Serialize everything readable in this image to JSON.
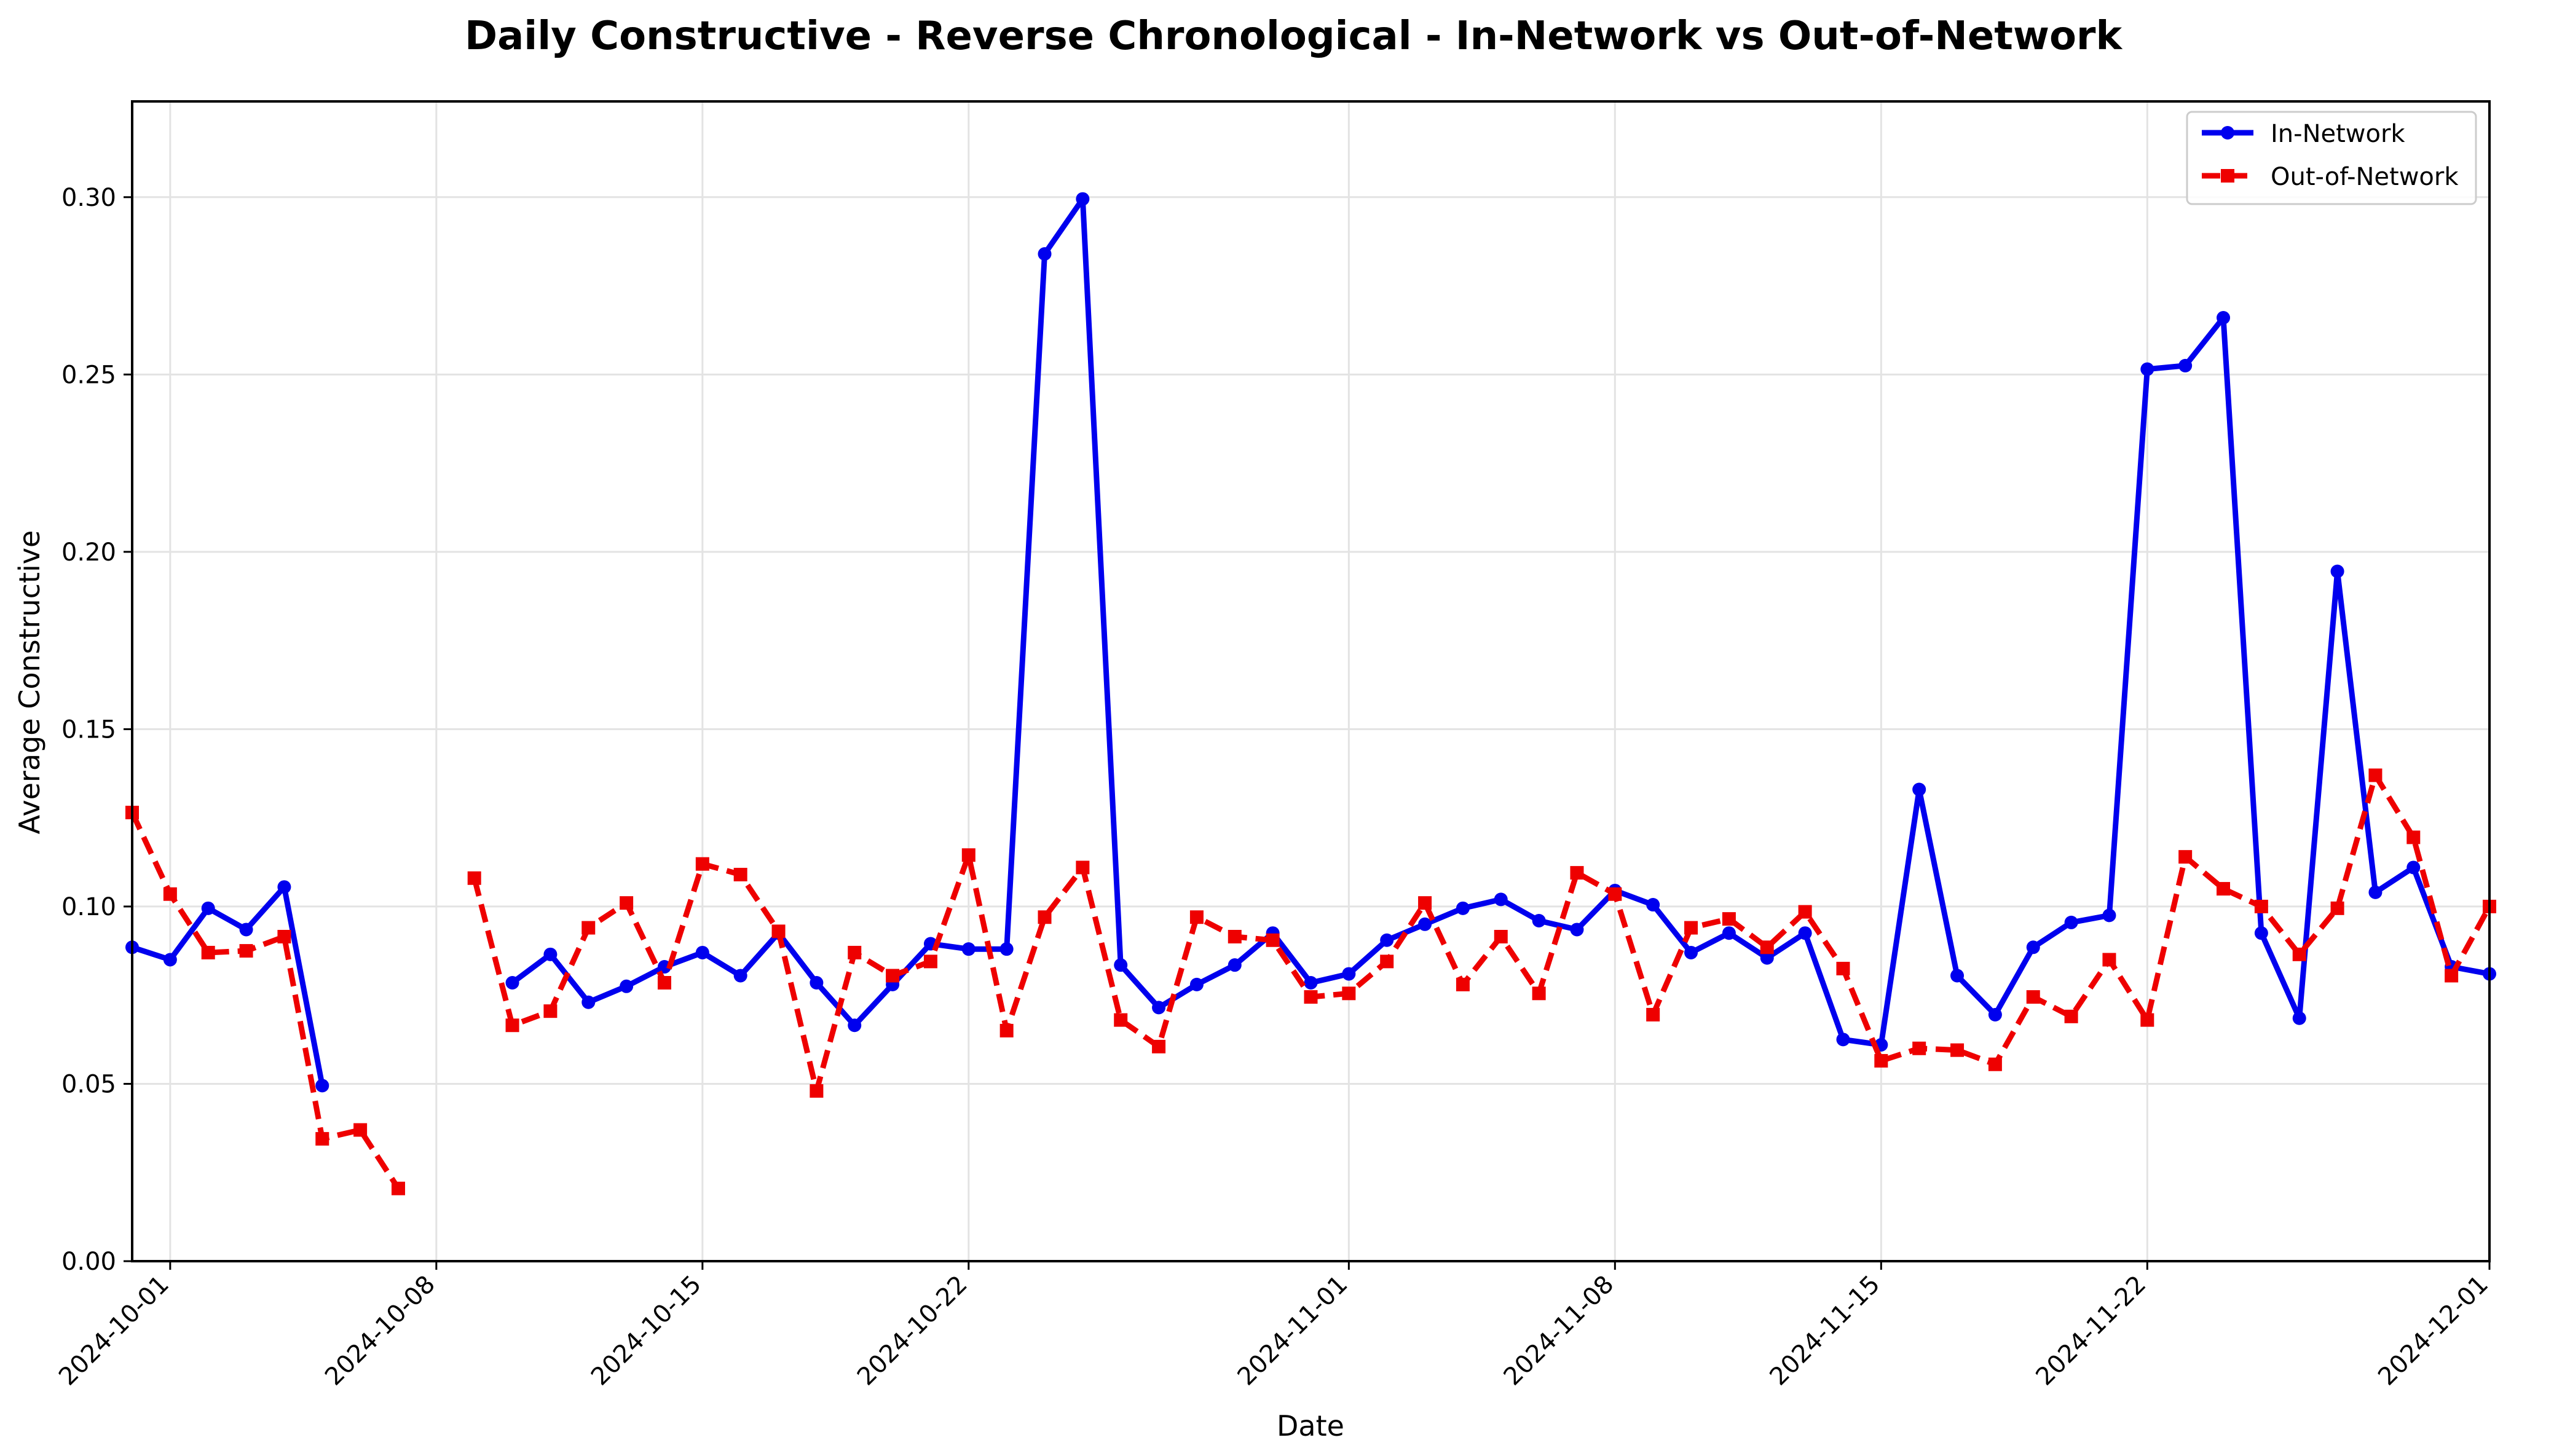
{
  "chart_data": {
    "type": "line",
    "title": "Daily Constructive - Reverse Chronological - In-Network vs Out-of-Network",
    "xlabel": "Date",
    "ylabel": "Average Constructive",
    "xlim": [
      "2024-09-30",
      "2024-12-01"
    ],
    "ylim": [
      0,
      0.327
    ],
    "x_ticks": [
      "2024-10-01",
      "2024-10-08",
      "2024-10-15",
      "2024-10-22",
      "2024-11-01",
      "2024-11-08",
      "2024-11-15",
      "2024-11-22",
      "2024-12-01"
    ],
    "y_ticks": [
      "0.00",
      "0.05",
      "0.10",
      "0.15",
      "0.20",
      "0.25",
      "0.30"
    ],
    "grid": true,
    "legend_position": "top-right",
    "series": [
      {
        "name": "In-Network",
        "color": "#0000ee",
        "style": "solid",
        "marker": "circle",
        "points": [
          [
            "2024-09-30",
            0.0885
          ],
          [
            "2024-10-01",
            0.085
          ],
          [
            "2024-10-02",
            0.0995
          ],
          [
            "2024-10-03",
            0.0935
          ],
          [
            "2024-10-04",
            0.1055
          ],
          [
            "2024-10-05",
            0.0495
          ],
          [
            "2024-10-10",
            0.0785
          ],
          [
            "2024-10-11",
            0.0865
          ],
          [
            "2024-10-12",
            0.073
          ],
          [
            "2024-10-13",
            0.0775
          ],
          [
            "2024-10-14",
            0.083
          ],
          [
            "2024-10-15",
            0.087
          ],
          [
            "2024-10-16",
            0.0805
          ],
          [
            "2024-10-17",
            0.0925
          ],
          [
            "2024-10-18",
            0.0785
          ],
          [
            "2024-10-19",
            0.0665
          ],
          [
            "2024-10-20",
            0.078
          ],
          [
            "2024-10-21",
            0.0895
          ],
          [
            "2024-10-22",
            0.088
          ],
          [
            "2024-10-23",
            0.088
          ],
          [
            "2024-10-24",
            0.284
          ],
          [
            "2024-10-25",
            0.2995
          ],
          [
            "2024-10-26",
            0.0835
          ],
          [
            "2024-10-27",
            0.0715
          ],
          [
            "2024-10-28",
            0.078
          ],
          [
            "2024-10-29",
            0.0835
          ],
          [
            "2024-10-30",
            0.0925
          ],
          [
            "2024-10-31",
            0.0785
          ],
          [
            "2024-11-01",
            0.081
          ],
          [
            "2024-11-02",
            0.0905
          ],
          [
            "2024-11-03",
            0.095
          ],
          [
            "2024-11-04",
            0.0995
          ],
          [
            "2024-11-05",
            0.102
          ],
          [
            "2024-11-06",
            0.096
          ],
          [
            "2024-11-07",
            0.0935
          ],
          [
            "2024-11-08",
            0.1045
          ],
          [
            "2024-11-09",
            0.1005
          ],
          [
            "2024-11-10",
            0.087
          ],
          [
            "2024-11-11",
            0.0925
          ],
          [
            "2024-11-12",
            0.0855
          ],
          [
            "2024-11-13",
            0.0925
          ],
          [
            "2024-11-14",
            0.0625
          ],
          [
            "2024-11-15",
            0.061
          ],
          [
            "2024-11-16",
            0.133
          ],
          [
            "2024-11-17",
            0.0805
          ],
          [
            "2024-11-18",
            0.0695
          ],
          [
            "2024-11-19",
            0.0885
          ],
          [
            "2024-11-20",
            0.0955
          ],
          [
            "2024-11-21",
            0.0975
          ],
          [
            "2024-11-22",
            0.2515
          ],
          [
            "2024-11-23",
            0.2525
          ],
          [
            "2024-11-24",
            0.266
          ],
          [
            "2024-11-25",
            0.0925
          ],
          [
            "2024-11-26",
            0.0685
          ],
          [
            "2024-11-27",
            0.1945
          ],
          [
            "2024-11-28",
            0.104
          ],
          [
            "2024-11-29",
            0.111
          ],
          [
            "2024-11-30",
            0.083
          ],
          [
            "2024-12-01",
            0.081
          ]
        ]
      },
      {
        "name": "Out-of-Network",
        "color": "#ee0000",
        "style": "dashed",
        "marker": "square",
        "points": [
          [
            "2024-09-30",
            0.1265
          ],
          [
            "2024-10-01",
            0.1035
          ],
          [
            "2024-10-02",
            0.087
          ],
          [
            "2024-10-03",
            0.0875
          ],
          [
            "2024-10-04",
            0.0915
          ],
          [
            "2024-10-05",
            0.0345
          ],
          [
            "2024-10-06",
            0.037
          ],
          [
            "2024-10-07",
            0.0205
          ],
          [
            "2024-10-09",
            0.108
          ],
          [
            "2024-10-10",
            0.0665
          ],
          [
            "2024-10-11",
            0.0705
          ],
          [
            "2024-10-12",
            0.094
          ],
          [
            "2024-10-13",
            0.101
          ],
          [
            "2024-10-14",
            0.0785
          ],
          [
            "2024-10-15",
            0.112
          ],
          [
            "2024-10-16",
            0.109
          ],
          [
            "2024-10-17",
            0.093
          ],
          [
            "2024-10-18",
            0.048
          ],
          [
            "2024-10-19",
            0.087
          ],
          [
            "2024-10-20",
            0.0805
          ],
          [
            "2024-10-21",
            0.0845
          ],
          [
            "2024-10-22",
            0.1145
          ],
          [
            "2024-10-23",
            0.065
          ],
          [
            "2024-10-24",
            0.097
          ],
          [
            "2024-10-25",
            0.111
          ],
          [
            "2024-10-26",
            0.068
          ],
          [
            "2024-10-27",
            0.0605
          ],
          [
            "2024-10-28",
            0.097
          ],
          [
            "2024-10-29",
            0.0915
          ],
          [
            "2024-10-30",
            0.0905
          ],
          [
            "2024-10-31",
            0.0745
          ],
          [
            "2024-11-01",
            0.0755
          ],
          [
            "2024-11-02",
            0.0845
          ],
          [
            "2024-11-03",
            0.101
          ],
          [
            "2024-11-04",
            0.078
          ],
          [
            "2024-11-05",
            0.0915
          ],
          [
            "2024-11-06",
            0.0755
          ],
          [
            "2024-11-07",
            0.1095
          ],
          [
            "2024-11-08",
            0.1035
          ],
          [
            "2024-11-09",
            0.0695
          ],
          [
            "2024-11-10",
            0.094
          ],
          [
            "2024-11-11",
            0.0965
          ],
          [
            "2024-11-12",
            0.0885
          ],
          [
            "2024-11-13",
            0.0985
          ],
          [
            "2024-11-14",
            0.0825
          ],
          [
            "2024-11-15",
            0.0565
          ],
          [
            "2024-11-16",
            0.06
          ],
          [
            "2024-11-17",
            0.0595
          ],
          [
            "2024-11-18",
            0.0555
          ],
          [
            "2024-11-19",
            0.0745
          ],
          [
            "2024-11-20",
            0.069
          ],
          [
            "2024-11-21",
            0.085
          ],
          [
            "2024-11-22",
            0.068
          ],
          [
            "2024-11-23",
            0.114
          ],
          [
            "2024-11-24",
            0.105
          ],
          [
            "2024-11-25",
            0.1
          ],
          [
            "2024-11-26",
            0.0865
          ],
          [
            "2024-11-27",
            0.0995
          ],
          [
            "2024-11-28",
            0.137
          ],
          [
            "2024-11-29",
            0.1195
          ],
          [
            "2024-11-30",
            0.0805
          ],
          [
            "2024-12-01",
            0.1
          ]
        ]
      }
    ]
  }
}
